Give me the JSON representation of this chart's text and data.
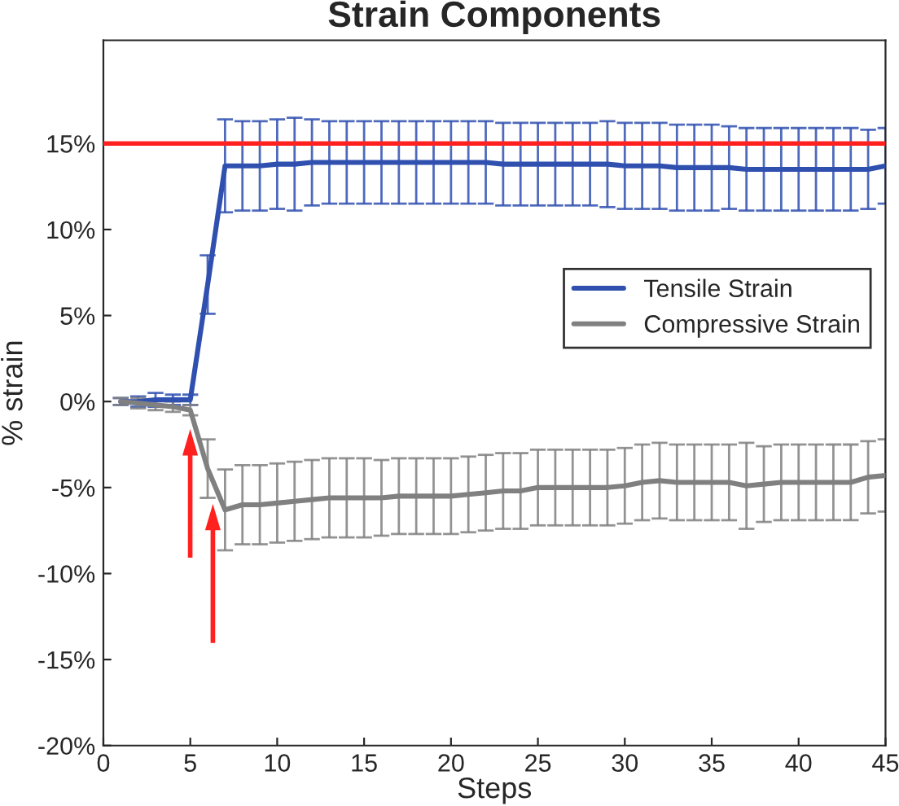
{
  "chart_data": {
    "type": "line",
    "title": "Strain Components",
    "xlabel": "Steps",
    "ylabel": "% strain",
    "x": [
      1,
      2,
      3,
      4,
      5,
      6,
      7,
      8,
      9,
      10,
      11,
      12,
      13,
      14,
      15,
      16,
      17,
      18,
      19,
      20,
      21,
      22,
      23,
      24,
      25,
      26,
      27,
      28,
      29,
      30,
      31,
      32,
      33,
      34,
      35,
      36,
      37,
      38,
      39,
      40,
      41,
      42,
      43,
      44,
      45
    ],
    "series": [
      {
        "name": "Tensile Strain",
        "color": "#3050b0",
        "values": [
          0,
          0,
          0.1,
          0.1,
          0.1,
          6.8,
          13.7,
          13.7,
          13.7,
          13.8,
          13.8,
          13.9,
          13.9,
          13.9,
          13.9,
          13.9,
          13.9,
          13.9,
          13.9,
          13.9,
          13.9,
          13.9,
          13.8,
          13.8,
          13.8,
          13.8,
          13.8,
          13.8,
          13.8,
          13.7,
          13.7,
          13.7,
          13.6,
          13.6,
          13.6,
          13.6,
          13.5,
          13.5,
          13.5,
          13.5,
          13.5,
          13.5,
          13.5,
          13.5,
          13.7
        ],
        "errors": [
          0.2,
          0.3,
          0.4,
          0.3,
          0.3,
          1.7,
          2.7,
          2.6,
          2.6,
          2.6,
          2.7,
          2.5,
          2.4,
          2.4,
          2.4,
          2.4,
          2.4,
          2.4,
          2.4,
          2.4,
          2.4,
          2.4,
          2.4,
          2.4,
          2.4,
          2.4,
          2.4,
          2.4,
          2.5,
          2.5,
          2.5,
          2.5,
          2.5,
          2.5,
          2.5,
          2.4,
          2.4,
          2.4,
          2.4,
          2.4,
          2.4,
          2.4,
          2.4,
          2.3,
          2.2
        ]
      },
      {
        "name": "Compressive Strain",
        "color": "#808080",
        "values": [
          0,
          -0.1,
          -0.2,
          -0.3,
          -0.5,
          -3.9,
          -6.3,
          -6.0,
          -6.0,
          -5.9,
          -5.8,
          -5.7,
          -5.6,
          -5.6,
          -5.6,
          -5.6,
          -5.5,
          -5.5,
          -5.5,
          -5.5,
          -5.4,
          -5.3,
          -5.2,
          -5.2,
          -5.0,
          -5.0,
          -5.0,
          -5.0,
          -5.0,
          -4.9,
          -4.7,
          -4.6,
          -4.7,
          -4.7,
          -4.7,
          -4.7,
          -4.9,
          -4.8,
          -4.7,
          -4.7,
          -4.7,
          -4.7,
          -4.7,
          -4.4,
          -4.3
        ],
        "errors": [
          0.2,
          0.3,
          0.3,
          0.3,
          0.3,
          1.7,
          2.35,
          2.3,
          2.3,
          2.3,
          2.3,
          2.3,
          2.3,
          2.3,
          2.3,
          2.2,
          2.2,
          2.2,
          2.2,
          2.2,
          2.2,
          2.2,
          2.2,
          2.2,
          2.2,
          2.2,
          2.2,
          2.2,
          2.2,
          2.2,
          2.2,
          2.2,
          2.2,
          2.2,
          2.2,
          2.2,
          2.5,
          2.2,
          2.2,
          2.2,
          2.2,
          2.2,
          2.2,
          2.1,
          2.1
        ]
      }
    ],
    "ref_lines": [
      {
        "axis": "y",
        "value": 15,
        "color": "#ff2020"
      }
    ],
    "xlim": [
      0,
      45
    ],
    "xticks": [
      0,
      5,
      10,
      15,
      20,
      25,
      30,
      35,
      40,
      45
    ],
    "ylim": [
      -20,
      21
    ],
    "yticks": [
      {
        "value": -20,
        "label": "-20%"
      },
      {
        "value": -15,
        "label": "-15%"
      },
      {
        "value": -10,
        "label": "-10%"
      },
      {
        "value": -5,
        "label": "-5%"
      },
      {
        "value": 0,
        "label": "0%"
      },
      {
        "value": 5,
        "label": "5%"
      },
      {
        "value": 10,
        "label": "10%"
      },
      {
        "value": 15,
        "label": "15%"
      }
    ],
    "grid": false,
    "legend": "right",
    "marker": "none",
    "line_style": "solid"
  }
}
